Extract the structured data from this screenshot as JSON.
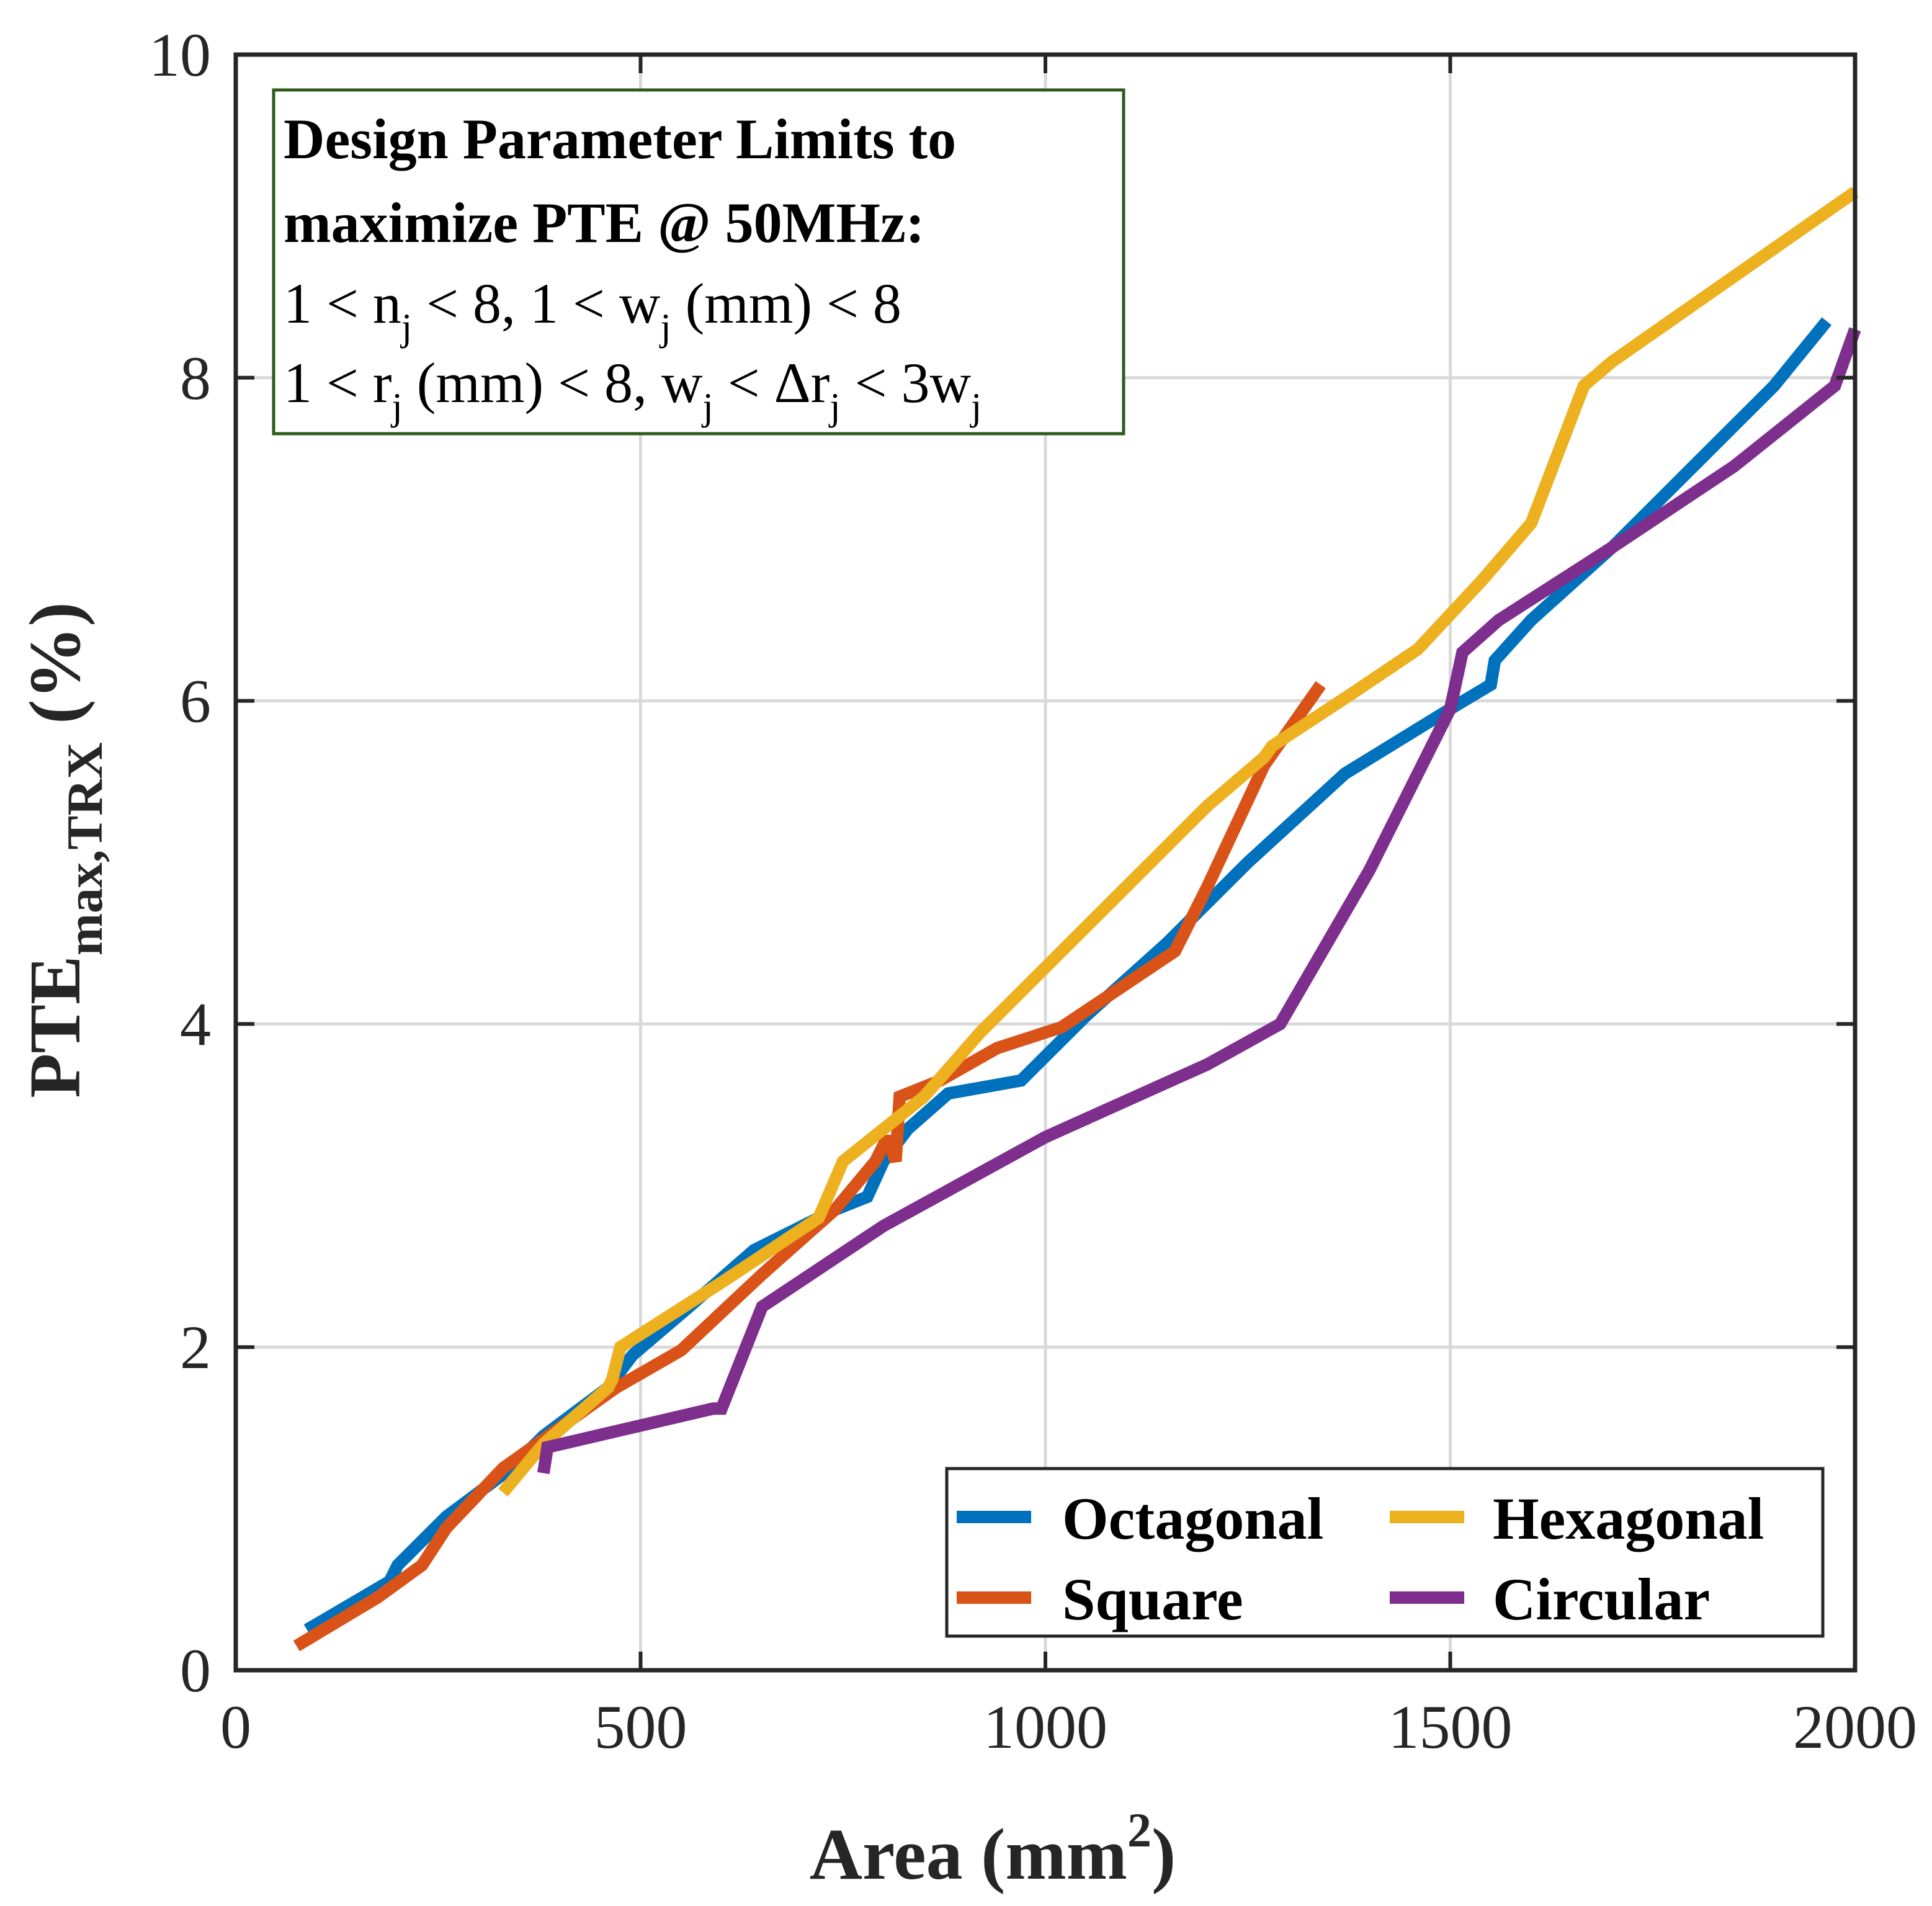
{
  "chart_data": {
    "type": "line",
    "title": "",
    "xlabel": "Area (mm",
    "xlabel_sup": "2",
    "xlabel_close": ")",
    "ylabel": "PTE",
    "ylabel_sub": "max,TRX",
    "ylabel_unit": " (%)",
    "xlim": [
      0,
      2000
    ],
    "ylim": [
      0,
      10
    ],
    "xticks": [
      0,
      500,
      1000,
      1500,
      2000
    ],
    "yticks": [
      0,
      2,
      4,
      6,
      8,
      10
    ],
    "grid": true,
    "legend_position": "bottom-right",
    "annotation": {
      "line1": "Design Parameter Limits to",
      "line2": "maximize PTE @ 50MHz:",
      "line3": [
        "1 < n",
        "j",
        " < 8, 1 < w",
        "j",
        " (mm) < 8"
      ],
      "line4": [
        "1 < r",
        "j",
        " (mm) < 8, w",
        "j",
        " < Δr",
        "j",
        " < 3w",
        "j"
      ]
    },
    "series": [
      {
        "name": "Octagonal",
        "color": "#0072BD",
        "x": [
          88,
          190,
          200,
          260,
          340,
          380,
          460,
          490,
          560,
          640,
          700,
          740,
          780,
          800,
          830,
          880,
          970,
          1050,
          1150,
          1250,
          1370,
          1500,
          1550,
          1555,
          1600,
          1700,
          1800,
          1900,
          1965
        ],
        "y": [
          0.25,
          0.55,
          0.65,
          0.95,
          1.25,
          1.45,
          1.75,
          1.95,
          2.25,
          2.6,
          2.75,
          2.85,
          2.93,
          3.15,
          3.35,
          3.57,
          3.65,
          4.05,
          4.5,
          5.0,
          5.55,
          5.95,
          6.1,
          6.25,
          6.5,
          6.95,
          7.45,
          7.95,
          8.35
        ]
      },
      {
        "name": "Square",
        "color": "#D95319",
        "x": [
          75,
          175,
          230,
          260,
          330,
          400,
          470,
          550,
          650,
          740,
          790,
          805,
          815,
          820,
          870,
          940,
          1020,
          1160,
          1200,
          1270,
          1340
        ],
        "y": [
          0.15,
          0.45,
          0.65,
          0.88,
          1.25,
          1.5,
          1.75,
          1.98,
          2.45,
          2.85,
          3.15,
          3.3,
          3.15,
          3.55,
          3.65,
          3.85,
          3.98,
          4.45,
          4.85,
          5.6,
          6.1
        ]
      },
      {
        "name": "Hexagonal",
        "color": "#EDB120",
        "x": [
          330,
          380,
          460,
          465,
          475,
          600,
          720,
          750,
          850,
          920,
          1000,
          1100,
          1200,
          1270,
          1280,
          1380,
          1460,
          1540,
          1600,
          1665,
          1700,
          1800,
          1900,
          2000
        ],
        "y": [
          1.1,
          1.4,
          1.75,
          1.8,
          2.0,
          2.4,
          2.8,
          3.15,
          3.55,
          3.95,
          4.35,
          4.85,
          5.35,
          5.65,
          5.72,
          6.05,
          6.32,
          6.75,
          7.1,
          7.95,
          8.1,
          8.45,
          8.8,
          9.15
        ]
      },
      {
        "name": "Circular",
        "color": "#7E2F8E",
        "x": [
          380,
          385,
          590,
          600,
          650,
          800,
          1000,
          1200,
          1290,
          1400,
          1500,
          1515,
          1560,
          1700,
          1850,
          1975,
          2000
        ],
        "y": [
          1.22,
          1.38,
          1.62,
          1.62,
          2.25,
          2.75,
          3.3,
          3.75,
          4.0,
          4.95,
          5.95,
          6.3,
          6.5,
          6.95,
          7.45,
          7.95,
          8.3
        ]
      }
    ]
  }
}
